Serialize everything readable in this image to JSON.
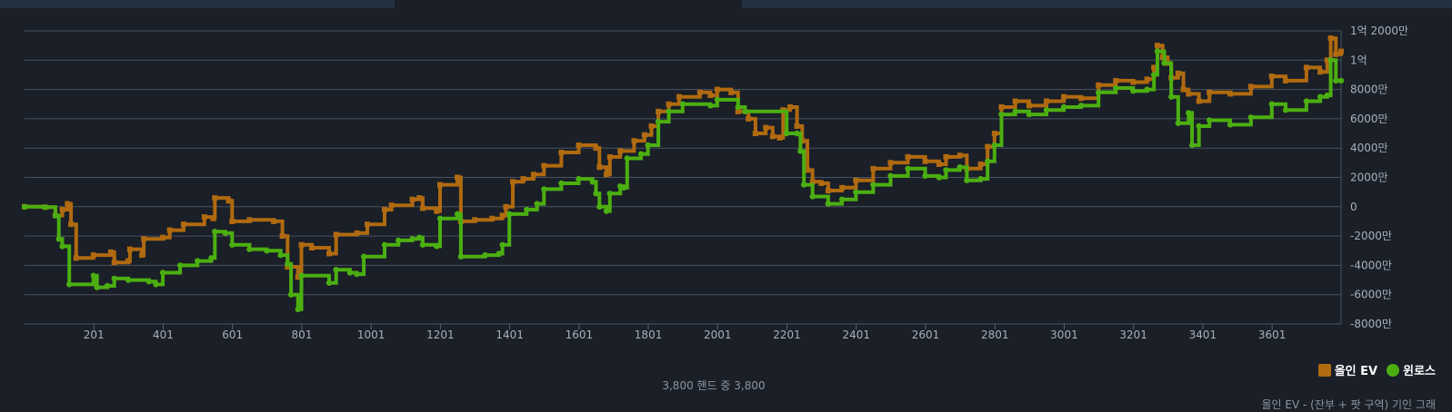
{
  "chart_data": {
    "type": "line",
    "x_tick_labels": [
      "201",
      "401",
      "601",
      "801",
      "1001",
      "1201",
      "1401",
      "1601",
      "1801",
      "2001",
      "2201",
      "2401",
      "2601",
      "2801",
      "3001",
      "3201",
      "3401",
      "3601"
    ],
    "x_ticks": [
      201,
      401,
      601,
      801,
      1001,
      1201,
      1401,
      1601,
      1801,
      2001,
      2201,
      2401,
      2601,
      2801,
      3001,
      3201,
      3401,
      3601
    ],
    "xlim": [
      1,
      3800
    ],
    "y_ticks": [
      -80000000,
      -60000000,
      -40000000,
      -20000000,
      0,
      20000000,
      40000000,
      60000000,
      80000000,
      100000000,
      120000000
    ],
    "y_tick_labels": [
      "-8000만",
      "-6000만",
      "-4000만",
      "-2000만",
      "0",
      "2000만",
      "4000만",
      "6000만",
      "8000만",
      "1억",
      "1억 2000만"
    ],
    "ylim": [
      -80000000,
      120000000
    ],
    "grid": true,
    "legend_position": "bottom-right",
    "series": [
      {
        "name": "올인 EV",
        "color": "#b06a0f",
        "marker": "square",
        "points": [
          [
            1,
            0
          ],
          [
            60,
            -300000
          ],
          [
            90,
            -6000000
          ],
          [
            110,
            -2000000
          ],
          [
            125,
            2000000
          ],
          [
            135,
            -12000000
          ],
          [
            150,
            -35000000
          ],
          [
            200,
            -33000000
          ],
          [
            250,
            -31000000
          ],
          [
            260,
            -38000000
          ],
          [
            300,
            -37000000
          ],
          [
            305,
            -29000000
          ],
          [
            340,
            -33000000
          ],
          [
            345,
            -22000000
          ],
          [
            400,
            -21000000
          ],
          [
            420,
            -16000000
          ],
          [
            460,
            -12000000
          ],
          [
            520,
            -7000000
          ],
          [
            545,
            -8000000
          ],
          [
            550,
            6000000
          ],
          [
            590,
            4000000
          ],
          [
            600,
            -10000000
          ],
          [
            650,
            -9000000
          ],
          [
            720,
            -10000000
          ],
          [
            745,
            -20000000
          ],
          [
            760,
            -41000000
          ],
          [
            790,
            -48000000
          ],
          [
            800,
            -26000000
          ],
          [
            830,
            -28000000
          ],
          [
            880,
            -32000000
          ],
          [
            900,
            -19000000
          ],
          [
            960,
            -18000000
          ],
          [
            990,
            -12000000
          ],
          [
            1040,
            -2000000
          ],
          [
            1060,
            1000000
          ],
          [
            1120,
            5000000
          ],
          [
            1140,
            6000000
          ],
          [
            1150,
            -1000000
          ],
          [
            1190,
            -3000000
          ],
          [
            1200,
            15000000
          ],
          [
            1250,
            20000000
          ],
          [
            1260,
            -10000000
          ],
          [
            1300,
            -9000000
          ],
          [
            1350,
            -8000000
          ],
          [
            1380,
            -6000000
          ],
          [
            1390,
            0
          ],
          [
            1410,
            17000000
          ],
          [
            1440,
            19000000
          ],
          [
            1470,
            22000000
          ],
          [
            1500,
            28000000
          ],
          [
            1550,
            37000000
          ],
          [
            1600,
            42000000
          ],
          [
            1650,
            40000000
          ],
          [
            1660,
            27000000
          ],
          [
            1680,
            22000000
          ],
          [
            1690,
            34000000
          ],
          [
            1720,
            38000000
          ],
          [
            1760,
            45000000
          ],
          [
            1790,
            49000000
          ],
          [
            1810,
            55000000
          ],
          [
            1830,
            65000000
          ],
          [
            1860,
            70000000
          ],
          [
            1890,
            75000000
          ],
          [
            1950,
            78000000
          ],
          [
            1980,
            76000000
          ],
          [
            2000,
            80000000
          ],
          [
            2040,
            78000000
          ],
          [
            2060,
            65000000
          ],
          [
            2090,
            60000000
          ],
          [
            2110,
            50000000
          ],
          [
            2140,
            54000000
          ],
          [
            2160,
            48000000
          ],
          [
            2180,
            47000000
          ],
          [
            2190,
            66000000
          ],
          [
            2210,
            68000000
          ],
          [
            2230,
            55000000
          ],
          [
            2245,
            45000000
          ],
          [
            2260,
            25000000
          ],
          [
            2275,
            17000000
          ],
          [
            2300,
            16000000
          ],
          [
            2320,
            11000000
          ],
          [
            2360,
            13000000
          ],
          [
            2400,
            18000000
          ],
          [
            2450,
            26000000
          ],
          [
            2500,
            30000000
          ],
          [
            2550,
            34000000
          ],
          [
            2600,
            31000000
          ],
          [
            2640,
            29000000
          ],
          [
            2660,
            34000000
          ],
          [
            2700,
            35000000
          ],
          [
            2720,
            26000000
          ],
          [
            2760,
            29000000
          ],
          [
            2780,
            41000000
          ],
          [
            2800,
            50000000
          ],
          [
            2820,
            68000000
          ],
          [
            2860,
            72000000
          ],
          [
            2900,
            69000000
          ],
          [
            2950,
            72000000
          ],
          [
            3000,
            75000000
          ],
          [
            3050,
            74000000
          ],
          [
            3100,
            83000000
          ],
          [
            3150,
            86000000
          ],
          [
            3200,
            85000000
          ],
          [
            3240,
            87000000
          ],
          [
            3260,
            95000000
          ],
          [
            3270,
            110000000
          ],
          [
            3285,
            102000000
          ],
          [
            3300,
            98000000
          ],
          [
            3310,
            88000000
          ],
          [
            3330,
            91000000
          ],
          [
            3345,
            80000000
          ],
          [
            3360,
            77000000
          ],
          [
            3390,
            72000000
          ],
          [
            3420,
            78000000
          ],
          [
            3480,
            77000000
          ],
          [
            3540,
            82000000
          ],
          [
            3600,
            89000000
          ],
          [
            3640,
            86000000
          ],
          [
            3700,
            95000000
          ],
          [
            3740,
            92000000
          ],
          [
            3760,
            100000000
          ],
          [
            3770,
            115000000
          ],
          [
            3785,
            104000000
          ],
          [
            3800,
            106000000
          ]
        ]
      },
      {
        "name": "윈로스",
        "color": "#4caf10",
        "marker": "circle",
        "points": [
          [
            1,
            0
          ],
          [
            60,
            -300000
          ],
          [
            90,
            -6000000
          ],
          [
            100,
            -22000000
          ],
          [
            110,
            -27000000
          ],
          [
            130,
            -53000000
          ],
          [
            200,
            -47000000
          ],
          [
            210,
            -55000000
          ],
          [
            240,
            -54000000
          ],
          [
            260,
            -49000000
          ],
          [
            300,
            -50000000
          ],
          [
            360,
            -51000000
          ],
          [
            380,
            -53000000
          ],
          [
            400,
            -45000000
          ],
          [
            450,
            -40000000
          ],
          [
            500,
            -37000000
          ],
          [
            540,
            -35000000
          ],
          [
            550,
            -17000000
          ],
          [
            580,
            -18000000
          ],
          [
            600,
            -26000000
          ],
          [
            650,
            -29000000
          ],
          [
            700,
            -30000000
          ],
          [
            740,
            -33000000
          ],
          [
            760,
            -39000000
          ],
          [
            770,
            -60000000
          ],
          [
            790,
            -70000000
          ],
          [
            800,
            -47000000
          ],
          [
            880,
            -52000000
          ],
          [
            900,
            -43000000
          ],
          [
            940,
            -45000000
          ],
          [
            960,
            -46000000
          ],
          [
            980,
            -34000000
          ],
          [
            1040,
            -26000000
          ],
          [
            1080,
            -23000000
          ],
          [
            1120,
            -22000000
          ],
          [
            1140,
            -21000000
          ],
          [
            1150,
            -26000000
          ],
          [
            1190,
            -27000000
          ],
          [
            1200,
            -8000000
          ],
          [
            1250,
            -5000000
          ],
          [
            1260,
            -34000000
          ],
          [
            1330,
            -33000000
          ],
          [
            1370,
            -32000000
          ],
          [
            1380,
            -26000000
          ],
          [
            1400,
            -5000000
          ],
          [
            1450,
            -2000000
          ],
          [
            1480,
            2000000
          ],
          [
            1500,
            12000000
          ],
          [
            1550,
            16000000
          ],
          [
            1600,
            19000000
          ],
          [
            1640,
            17000000
          ],
          [
            1650,
            9000000
          ],
          [
            1660,
            0
          ],
          [
            1680,
            -3000000
          ],
          [
            1690,
            9000000
          ],
          [
            1720,
            14000000
          ],
          [
            1730,
            13000000
          ],
          [
            1740,
            33000000
          ],
          [
            1780,
            36000000
          ],
          [
            1800,
            42000000
          ],
          [
            1830,
            58000000
          ],
          [
            1860,
            65000000
          ],
          [
            1900,
            70000000
          ],
          [
            1980,
            69000000
          ],
          [
            2000,
            73000000
          ],
          [
            2060,
            68000000
          ],
          [
            2080,
            65000000
          ],
          [
            2200,
            50000000
          ],
          [
            2230,
            50000000
          ],
          [
            2240,
            38000000
          ],
          [
            2250,
            15000000
          ],
          [
            2275,
            7000000
          ],
          [
            2320,
            2000000
          ],
          [
            2360,
            5000000
          ],
          [
            2400,
            10000000
          ],
          [
            2450,
            15000000
          ],
          [
            2500,
            21000000
          ],
          [
            2550,
            26000000
          ],
          [
            2600,
            21000000
          ],
          [
            2640,
            20000000
          ],
          [
            2660,
            25000000
          ],
          [
            2700,
            27000000
          ],
          [
            2720,
            18000000
          ],
          [
            2760,
            19000000
          ],
          [
            2780,
            31000000
          ],
          [
            2800,
            42000000
          ],
          [
            2820,
            63000000
          ],
          [
            2860,
            65000000
          ],
          [
            2900,
            63000000
          ],
          [
            2950,
            66000000
          ],
          [
            3000,
            68000000
          ],
          [
            3050,
            69000000
          ],
          [
            3100,
            78000000
          ],
          [
            3150,
            81000000
          ],
          [
            3200,
            79000000
          ],
          [
            3240,
            80000000
          ],
          [
            3260,
            90000000
          ],
          [
            3270,
            106000000
          ],
          [
            3290,
            98000000
          ],
          [
            3310,
            75000000
          ],
          [
            3330,
            57000000
          ],
          [
            3360,
            64000000
          ],
          [
            3370,
            42000000
          ],
          [
            3390,
            55000000
          ],
          [
            3420,
            59000000
          ],
          [
            3480,
            56000000
          ],
          [
            3540,
            61000000
          ],
          [
            3600,
            70000000
          ],
          [
            3640,
            66000000
          ],
          [
            3700,
            72000000
          ],
          [
            3740,
            75000000
          ],
          [
            3760,
            76000000
          ],
          [
            3770,
            100000000
          ],
          [
            3785,
            86000000
          ],
          [
            3800,
            86000000
          ]
        ]
      }
    ]
  },
  "footer": {
    "hand_count": "3,800 핸드 중 3,800",
    "note": "올인 EV - (잔부 + 팟 구역) 기인 그래"
  }
}
